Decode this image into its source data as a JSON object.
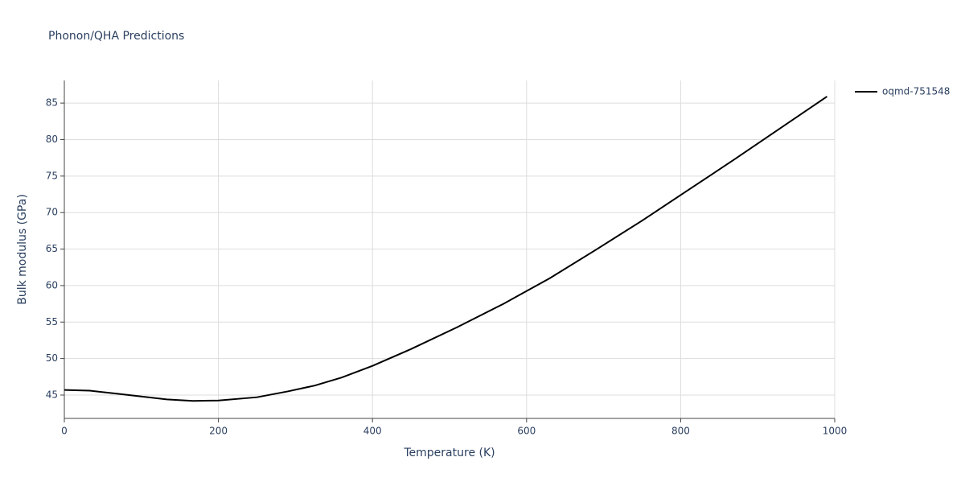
{
  "chart_data": {
    "type": "line",
    "title": "Phonon/QHA Predictions",
    "x_label": "Temperature (K)",
    "y_label": "Bulk modulus (GPa)",
    "xlim": [
      0,
      1000
    ],
    "ylim": [
      41.8,
      88.1
    ],
    "xticks": [
      0,
      200,
      400,
      600,
      800,
      1000
    ],
    "yticks": [
      45,
      50,
      55,
      60,
      65,
      70,
      75,
      80,
      85
    ],
    "grid": true,
    "legend": "top-right",
    "series": [
      {
        "name": "oqmd-751548",
        "color": "#000000",
        "x": [
          0,
          33,
          67,
          100,
          133,
          167,
          200,
          250,
          290,
          325,
          360,
          400,
          450,
          510,
          570,
          630,
          690,
          750,
          810,
          870,
          930,
          990
        ],
        "values": [
          45.7,
          45.6,
          45.2,
          44.8,
          44.4,
          44.2,
          44.25,
          44.7,
          45.5,
          46.3,
          47.4,
          49.0,
          51.3,
          54.3,
          57.5,
          61.0,
          64.9,
          68.9,
          73.1,
          77.3,
          81.6,
          85.9
        ]
      }
    ]
  }
}
